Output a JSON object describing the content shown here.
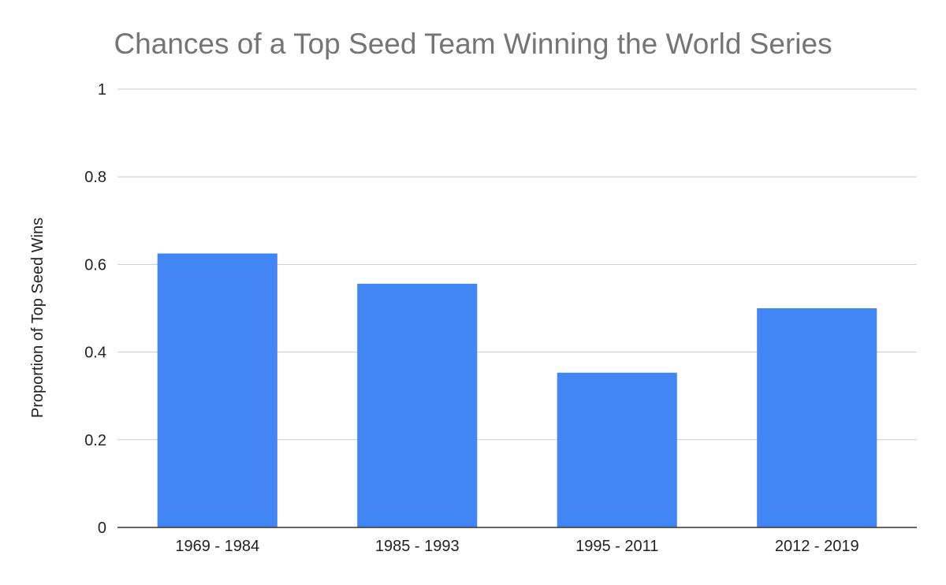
{
  "chart_data": {
    "type": "bar",
    "title": "Chances of a Top Seed Team Winning the World Series",
    "xlabel": "",
    "ylabel": "Proportion of Top Seed Wins",
    "categories": [
      "1969 - 1984",
      "1985 - 1993",
      "1995 - 2011",
      "2012 - 2019"
    ],
    "values": [
      0.625,
      0.556,
      0.353,
      0.5
    ],
    "ylim": [
      0,
      1
    ],
    "yticks": [
      0,
      0.2,
      0.4,
      0.6,
      0.8,
      1
    ],
    "ytick_labels": [
      "0",
      "0.2",
      "0.4",
      "0.6",
      "0.8",
      "1"
    ],
    "grid": true,
    "legend": "none",
    "colors": {
      "bar": "#4285f4",
      "grid": "#cccccc",
      "axis": "#333333",
      "title": "#757575",
      "text": "#222222"
    }
  }
}
